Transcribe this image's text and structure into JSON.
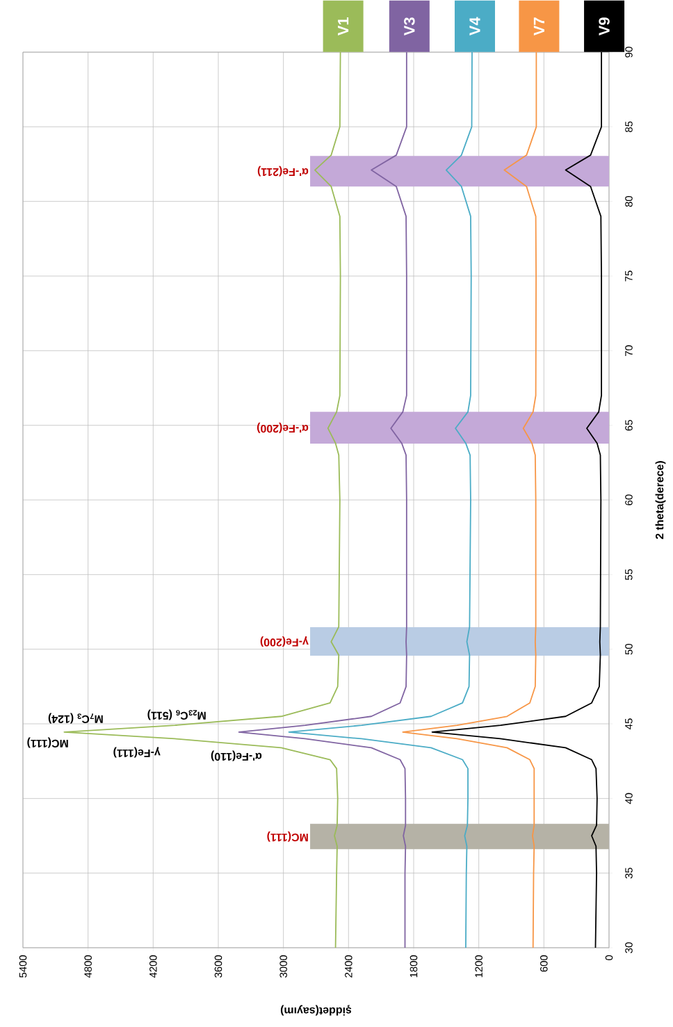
{
  "chart_data": {
    "type": "line",
    "xlabel": "şiddet(sayım)",
    "ylabel": "2 theta(derece)",
    "series": [
      {
        "name": "V1",
        "color": "#9bbb59",
        "x": [
          2520,
          2510,
          2505,
          2530,
          2505,
          2500,
          2510,
          2570,
          3020,
          4000,
          5020,
          4000,
          3020,
          2570,
          2500,
          2490,
          2560,
          2490,
          2480,
          2490,
          2520,
          2590,
          2510,
          2480,
          2475,
          2480,
          2560,
          2710,
          2560,
          2480,
          2475
        ],
        "values": [
          30,
          35,
          36.8,
          37.5,
          38.2,
          40,
          42,
          42.6,
          43.4,
          44,
          44.45,
          44.9,
          45.5,
          46.4,
          47.5,
          49.6,
          50.5,
          51.5,
          60,
          63,
          63.8,
          64.8,
          65.9,
          67,
          75,
          79,
          81,
          82.1,
          83.1,
          85,
          90
        ]
      },
      {
        "name": "V3",
        "color": "#8064a2",
        "x": [
          1880,
          1880,
          1875,
          1895,
          1875,
          1875,
          1880,
          1925,
          2190,
          2800,
          3410,
          2800,
          2190,
          1925,
          1870,
          1865,
          1870,
          1865,
          1865,
          1870,
          1910,
          2010,
          1900,
          1865,
          1865,
          1870,
          1960,
          2190,
          1960,
          1865,
          1865
        ],
        "values": [
          30,
          35,
          36.8,
          37.5,
          38.2,
          40,
          42,
          42.6,
          43.4,
          44,
          44.45,
          44.9,
          45.5,
          46.4,
          47.5,
          49.6,
          50.5,
          51.5,
          60,
          63,
          63.8,
          64.8,
          65.9,
          67,
          75,
          79,
          81,
          82.1,
          83.1,
          85,
          90
        ]
      },
      {
        "name": "V4",
        "color": "#4bacc6",
        "x": [
          1320,
          1315,
          1310,
          1330,
          1305,
          1300,
          1300,
          1350,
          1640,
          2280,
          2950,
          2280,
          1640,
          1350,
          1290,
          1285,
          1310,
          1285,
          1275,
          1280,
          1320,
          1415,
          1300,
          1275,
          1270,
          1275,
          1360,
          1500,
          1360,
          1265,
          1262
        ],
        "values": [
          30,
          35,
          36.8,
          37.5,
          38.2,
          40,
          42,
          42.6,
          43.4,
          44,
          44.45,
          44.9,
          45.5,
          46.4,
          47.5,
          49.6,
          50.5,
          51.5,
          60,
          63,
          63.8,
          64.8,
          65.9,
          67,
          75,
          79,
          81,
          82.1,
          83.1,
          85,
          90
        ]
      },
      {
        "name": "V7",
        "color": "#f79646",
        "x": [
          700,
          695,
          690,
          705,
          690,
          690,
          730,
          940,
          1400,
          1900,
          1400,
          940,
          730,
          680,
          675,
          680,
          675,
          675,
          680,
          710,
          790,
          700,
          675,
          672,
          675,
          760,
          965,
          760,
          670,
          670
        ],
        "values": [
          30,
          35,
          36.8,
          37.5,
          38.2,
          42,
          42.6,
          43.4,
          44,
          44.45,
          44.9,
          45.5,
          46.4,
          47.5,
          49.6,
          50.5,
          51.5,
          60,
          63,
          63.8,
          64.8,
          65.9,
          67,
          75,
          79,
          81,
          82.1,
          83.1,
          85,
          90
        ]
      },
      {
        "name": "V9",
        "color": "#000000",
        "x": [
          125,
          115,
          120,
          160,
          115,
          110,
          120,
          160,
          400,
          1000,
          1630,
          1000,
          400,
          160,
          90,
          80,
          85,
          80,
          75,
          80,
          110,
          205,
          95,
          70,
          70,
          75,
          170,
          400,
          170,
          70,
          70
        ],
        "values": [
          30,
          35,
          36.8,
          37.5,
          38.2,
          40,
          42,
          42.6,
          43.4,
          44,
          44.45,
          44.9,
          45.5,
          46.4,
          47.5,
          49.6,
          50.5,
          51.5,
          60,
          63,
          63.8,
          64.8,
          65.9,
          67,
          75,
          79,
          81,
          82.1,
          83.1,
          85,
          90
        ]
      }
    ],
    "xlim": [
      5400,
      0
    ],
    "xticks": [
      0,
      600,
      1200,
      1800,
      2400,
      3000,
      3600,
      4200,
      4800,
      5400
    ],
    "ylim": [
      30,
      90
    ],
    "yticks": [
      30,
      35,
      40,
      45,
      50,
      55,
      60,
      65,
      70,
      75,
      80,
      85,
      90
    ],
    "grid": true,
    "legend": "top",
    "bands": [
      {
        "axis": "y",
        "from": 36.6,
        "to": 38.3,
        "label": "MC(111)",
        "color": "#b5b2a6"
      },
      {
        "axis": "y",
        "from": 49.56,
        "to": 51.47,
        "label": "γ-Fe(200)",
        "color": "#b9cce4"
      },
      {
        "axis": "y",
        "from": 63.77,
        "to": 65.9,
        "label": "α'-Fe(200)",
        "color": "#c4a9d8"
      },
      {
        "axis": "y",
        "from": 81.0,
        "to": 83.05,
        "label": "α'-Fe(211)",
        "color": "#c4a9d8"
      }
    ],
    "annotations": [
      "MC(111)",
      "M$_{7}$C$_{3}$ (124)",
      "M$_{23}$C$_{6}$ (511)",
      "γ-Fe(111)",
      "α'-Fe(110)"
    ]
  }
}
